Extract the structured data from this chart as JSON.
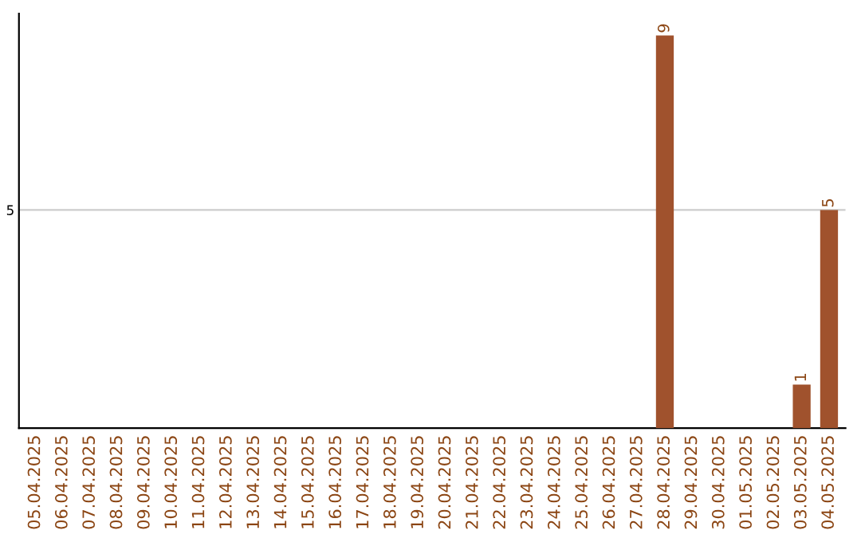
{
  "chart_data": {
    "type": "bar",
    "categories": [
      "05.04.2025",
      "06.04.2025",
      "07.04.2025",
      "08.04.2025",
      "09.04.2025",
      "10.04.2025",
      "11.04.2025",
      "12.04.2025",
      "13.04.2025",
      "14.04.2025",
      "15.04.2025",
      "16.04.2025",
      "17.04.2025",
      "18.04.2025",
      "19.04.2025",
      "20.04.2025",
      "21.04.2025",
      "22.04.2025",
      "23.04.2025",
      "24.04.2025",
      "25.04.2025",
      "26.04.2025",
      "27.04.2025",
      "28.04.2025",
      "29.04.2025",
      "30.04.2025",
      "01.05.2025",
      "02.05.2025",
      "03.05.2025",
      "04.05.2025"
    ],
    "values": [
      null,
      null,
      null,
      null,
      null,
      null,
      null,
      null,
      null,
      null,
      null,
      null,
      null,
      null,
      null,
      null,
      null,
      null,
      null,
      null,
      null,
      null,
      null,
      9,
      null,
      null,
      null,
      null,
      1,
      5
    ],
    "data_labels": true,
    "color": "#a0522d",
    "ylim": [
      0,
      9.5
    ],
    "yticks": [
      5
    ],
    "grid": "y"
  }
}
